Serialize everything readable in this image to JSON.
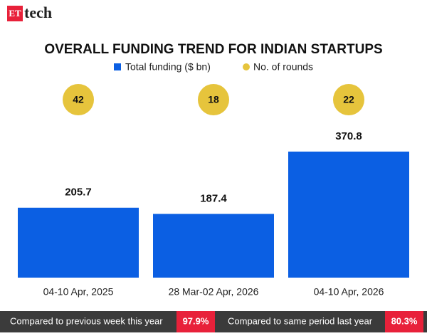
{
  "brand": {
    "mark": "ET",
    "name": "tech"
  },
  "chart_data": {
    "type": "bar",
    "title": "OVERALL FUNDING TREND FOR INDIAN STARTUPS",
    "categories": [
      "04-10 Apr, 2025",
      "28 Mar-02 Apr, 2026",
      "04-10 Apr, 2026"
    ],
    "series": [
      {
        "name": "Total funding ($ bn)",
        "color": "#0b5fe3",
        "values": [
          205.7,
          187.4,
          370.8
        ]
      },
      {
        "name": "No. of rounds",
        "color": "#e6c43c",
        "values": [
          42,
          18,
          22
        ]
      }
    ],
    "ylim": [
      0,
      400
    ]
  },
  "footer": {
    "items": [
      {
        "label": "Compared to previous week this year",
        "value": "97.9%"
      },
      {
        "label": "Compared to same period last year",
        "value": "80.3%"
      }
    ]
  }
}
